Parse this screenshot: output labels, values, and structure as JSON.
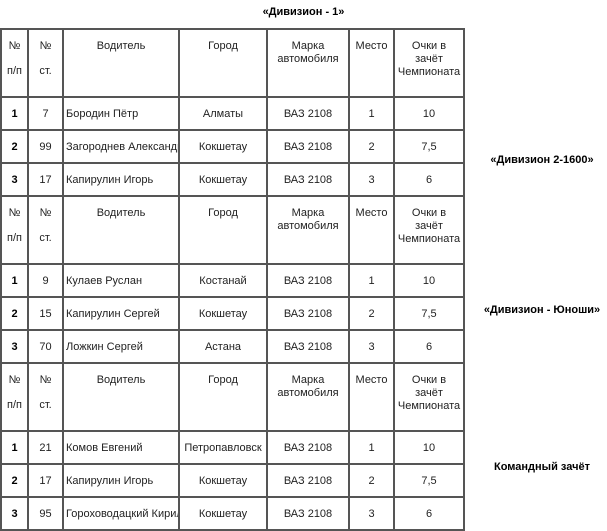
{
  "title": "«Дивизион - 1»",
  "headers": {
    "n": "№",
    "pp": "п/п",
    "st_n": "№",
    "st": "ст.",
    "driver": "Водитель",
    "city": "Город",
    "car": "Марка автомобиля",
    "place": "Место",
    "points": "Очки в зачёт Чемпионата"
  },
  "groups": [
    {
      "label": "«Дивизион 2-1600»",
      "rows": [
        {
          "n": "1",
          "st": "7",
          "driver": "Бородин Пётр",
          "city": "Алматы",
          "car": "ВАЗ 2108",
          "place": "1",
          "points": "10"
        },
        {
          "n": "2",
          "st": "99",
          "driver": "Загороднев Александр",
          "city": "Кокшетау",
          "car": "ВАЗ 2108",
          "place": "2",
          "points": "7,5"
        },
        {
          "n": "3",
          "st": "17",
          "driver": "Капирулин Игорь",
          "city": "Кокшетау",
          "car": "ВАЗ 2108",
          "place": "3",
          "points": "6"
        }
      ]
    },
    {
      "label": "«Дивизион - Юноши»",
      "rows": [
        {
          "n": "1",
          "st": "9",
          "driver": "Кулаев Руслан",
          "city": "Костанай",
          "car": "ВАЗ 2108",
          "place": "1",
          "points": "10"
        },
        {
          "n": "2",
          "st": "15",
          "driver": "Капирулин Сергей",
          "city": "Кокшетау",
          "car": "ВАЗ 2108",
          "place": "2",
          "points": "7,5"
        },
        {
          "n": "3",
          "st": "70",
          "driver": "Ложкин Сергей",
          "city": "Астана",
          "car": "ВАЗ 2108",
          "place": "3",
          "points": "6"
        }
      ]
    },
    {
      "label": "Командный зачёт",
      "rows": [
        {
          "n": "1",
          "st": "21",
          "driver": "Комов Евгений",
          "city": "Петропавловск",
          "car": "ВАЗ 2108",
          "place": "1",
          "points": "10"
        },
        {
          "n": "2",
          "st": "17",
          "driver": "Капирулин Игорь",
          "city": "Кокшетау",
          "car": "ВАЗ 2108",
          "place": "2",
          "points": "7,5"
        },
        {
          "n": "3",
          "st": "95",
          "driver": "Гороховодацкий Кирилл",
          "city": "Кокшетау",
          "car": "ВАЗ 2108",
          "place": "3",
          "points": "6"
        }
      ]
    }
  ]
}
